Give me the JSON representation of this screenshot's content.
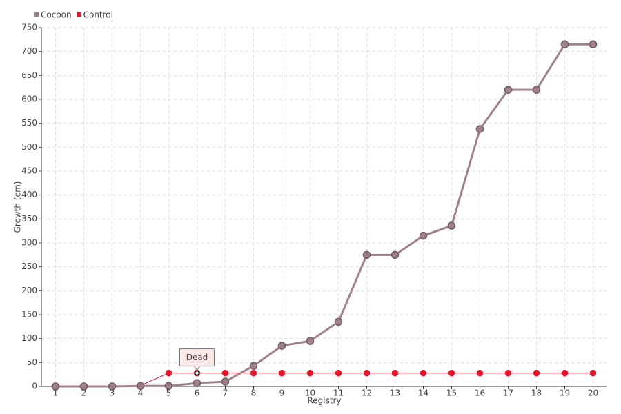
{
  "chart_data": {
    "type": "line",
    "x_label": "Registry",
    "y_label": "Growth (cm)",
    "categories": [
      "1",
      "2",
      "3",
      "4",
      "5",
      "6",
      "7",
      "8",
      "9",
      "10",
      "11",
      "12",
      "13",
      "14",
      "15",
      "16",
      "17",
      "18",
      "19",
      "20"
    ],
    "series": [
      {
        "name": "Cocoon",
        "color": "#a08189",
        "values": [
          0,
          0,
          0,
          1,
          1,
          7,
          10,
          43,
          85,
          95,
          135,
          275,
          275,
          315,
          336,
          538,
          620,
          620,
          715,
          715
        ]
      },
      {
        "name": "Control",
        "color": "#e3162b",
        "values": [
          0,
          0,
          1,
          2,
          28,
          28,
          28,
          28,
          28,
          28,
          28,
          28,
          28,
          28,
          28,
          28,
          28,
          28,
          28,
          28
        ]
      }
    ],
    "annotations": [
      {
        "label": "Dead",
        "series": "Control",
        "category": "6"
      }
    ],
    "ylim": [
      0,
      750
    ],
    "yticks": [
      0,
      50,
      100,
      150,
      200,
      250,
      300,
      350,
      400,
      450,
      500,
      550,
      600,
      650,
      700,
      750
    ],
    "grid": true,
    "legend": "top-left"
  }
}
